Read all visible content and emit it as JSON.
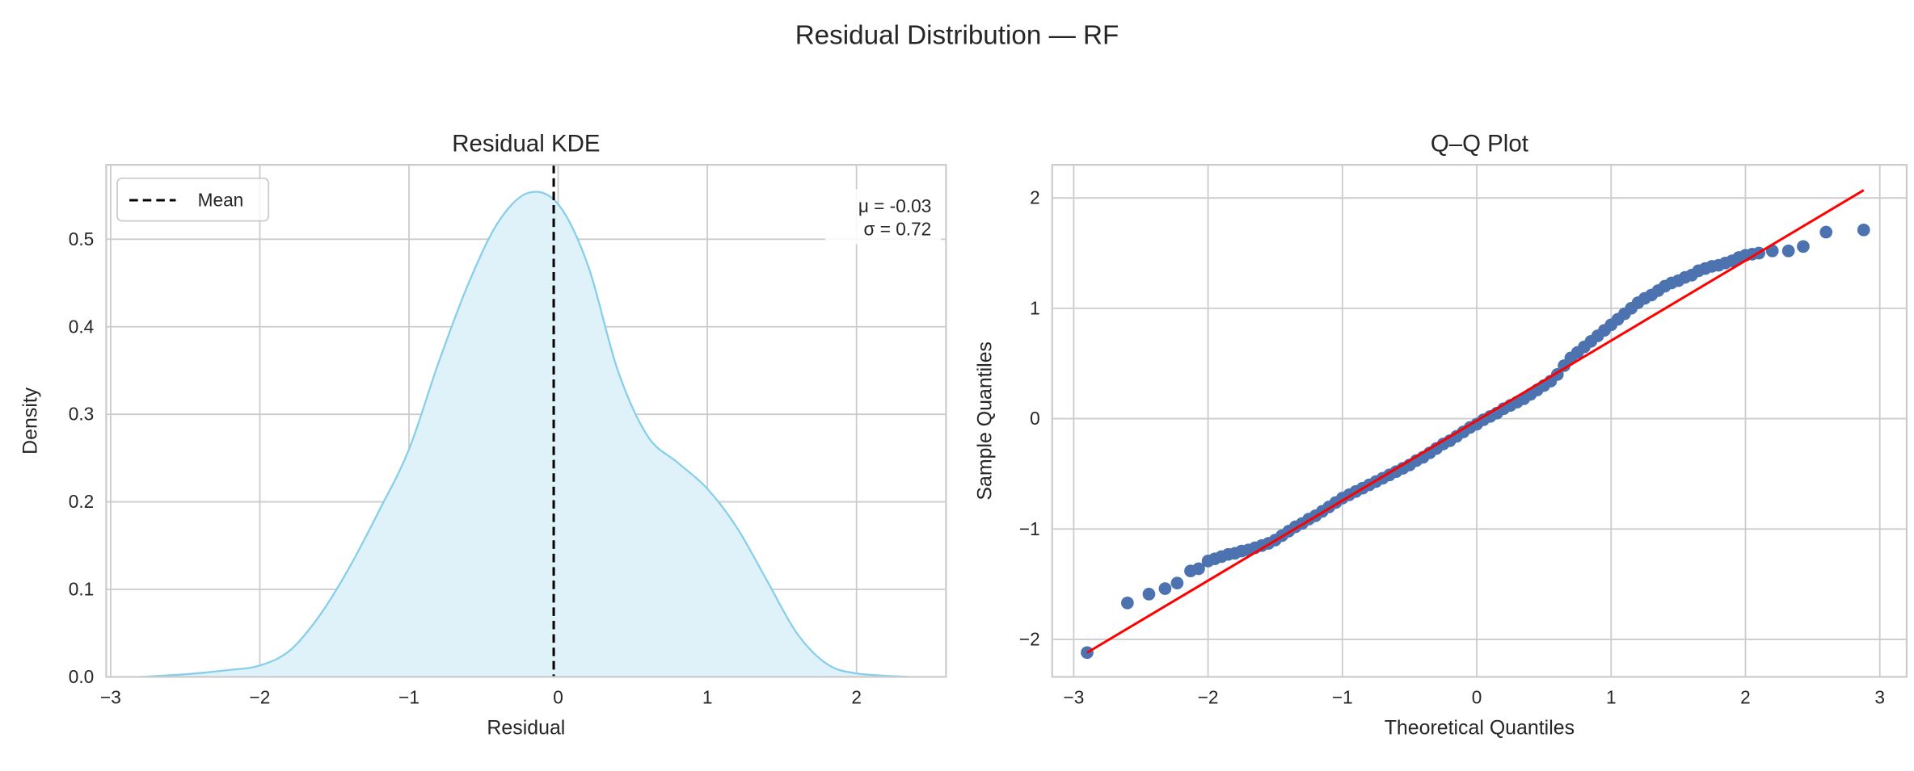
{
  "suptitle": "Residual Distribution — RF",
  "chart_data": [
    {
      "type": "area",
      "title": "Residual KDE",
      "xlabel": "Residual",
      "ylabel": "Density",
      "xlim": [
        -3.03,
        2.6
      ],
      "ylim": [
        0,
        0.585
      ],
      "xticks": [
        -3,
        -2,
        -1,
        0,
        1,
        2
      ],
      "xtick_labels": [
        "−3",
        "−2",
        "−1",
        "0",
        "1",
        "2"
      ],
      "yticks": [
        0,
        0.1,
        0.2,
        0.3,
        0.4,
        0.5
      ],
      "ytick_labels": [
        "0.0",
        "0.1",
        "0.2",
        "0.3",
        "0.4",
        "0.5"
      ],
      "grid": true,
      "line_color": "#87ceeb",
      "fill_color": "#dff1f9",
      "kde": {
        "x": [
          -2.8,
          -2.5,
          -2.2,
          -2.0,
          -1.8,
          -1.6,
          -1.4,
          -1.2,
          -1.0,
          -0.8,
          -0.6,
          -0.4,
          -0.2,
          0.0,
          0.2,
          0.4,
          0.6,
          0.8,
          1.0,
          1.2,
          1.4,
          1.6,
          1.8,
          2.0,
          2.35
        ],
        "y": [
          0.0,
          0.003,
          0.008,
          0.013,
          0.03,
          0.07,
          0.125,
          0.19,
          0.26,
          0.36,
          0.45,
          0.52,
          0.553,
          0.54,
          0.47,
          0.35,
          0.275,
          0.245,
          0.215,
          0.17,
          0.11,
          0.05,
          0.015,
          0.004,
          0.0
        ]
      },
      "mean_line": {
        "x": -0.03,
        "color": "#000000",
        "style": "dashed",
        "legend_label": "Mean"
      },
      "legend_position": "upper-left",
      "annotation": [
        "μ = -0.03",
        "σ = 0.72"
      ]
    },
    {
      "type": "scatter",
      "title": "Q–Q Plot",
      "xlabel": "Theoretical Quantiles",
      "ylabel": "Sample Quantiles",
      "xlim": [
        -3.16,
        3.2
      ],
      "ylim": [
        -2.34,
        2.3
      ],
      "xticks": [
        -3,
        -2,
        -1,
        0,
        1,
        2,
        3
      ],
      "xtick_labels": [
        "−3",
        "−2",
        "−1",
        "0",
        "1",
        "2",
        "3"
      ],
      "yticks": [
        -2,
        -1,
        0,
        1,
        2
      ],
      "ytick_labels": [
        "−2",
        "−1",
        "0",
        "1",
        "2"
      ],
      "grid": true,
      "point_color": "#4c72b0",
      "line_color": "#ff0000",
      "reference_line": {
        "x": [
          -2.9,
          2.88
        ],
        "y": [
          -2.12,
          2.07
        ]
      },
      "points": [
        [
          -2.9,
          -2.12
        ],
        [
          -2.6,
          -1.67
        ],
        [
          -2.44,
          -1.59
        ],
        [
          -2.32,
          -1.54
        ],
        [
          -2.23,
          -1.49
        ],
        [
          -2.13,
          -1.38
        ],
        [
          -2.07,
          -1.36
        ],
        [
          -2.0,
          -1.29
        ],
        [
          -1.95,
          -1.27
        ],
        [
          -1.9,
          -1.25
        ],
        [
          -1.85,
          -1.23
        ],
        [
          -1.8,
          -1.22
        ],
        [
          -1.75,
          -1.2
        ],
        [
          -1.7,
          -1.19
        ],
        [
          -1.65,
          -1.17
        ],
        [
          -1.6,
          -1.15
        ],
        [
          -1.55,
          -1.13
        ],
        [
          -1.5,
          -1.1
        ],
        [
          -1.45,
          -1.06
        ],
        [
          -1.4,
          -1.02
        ],
        [
          -1.35,
          -0.98
        ],
        [
          -1.3,
          -0.95
        ],
        [
          -1.25,
          -0.91
        ],
        [
          -1.2,
          -0.88
        ],
        [
          -1.15,
          -0.84
        ],
        [
          -1.1,
          -0.8
        ],
        [
          -1.05,
          -0.76
        ],
        [
          -1.0,
          -0.72
        ],
        [
          -0.95,
          -0.69
        ],
        [
          -0.9,
          -0.66
        ],
        [
          -0.85,
          -0.63
        ],
        [
          -0.8,
          -0.6
        ],
        [
          -0.75,
          -0.57
        ],
        [
          -0.7,
          -0.54
        ],
        [
          -0.65,
          -0.51
        ],
        [
          -0.6,
          -0.48
        ],
        [
          -0.55,
          -0.45
        ],
        [
          -0.5,
          -0.42
        ],
        [
          -0.45,
          -0.38
        ],
        [
          -0.4,
          -0.35
        ],
        [
          -0.35,
          -0.31
        ],
        [
          -0.3,
          -0.27
        ],
        [
          -0.25,
          -0.23
        ],
        [
          -0.2,
          -0.2
        ],
        [
          -0.15,
          -0.16
        ],
        [
          -0.1,
          -0.12
        ],
        [
          -0.05,
          -0.08
        ],
        [
          0.0,
          -0.05
        ],
        [
          0.05,
          -0.01
        ],
        [
          0.1,
          0.02
        ],
        [
          0.15,
          0.05
        ],
        [
          0.2,
          0.09
        ],
        [
          0.25,
          0.12
        ],
        [
          0.3,
          0.15
        ],
        [
          0.35,
          0.18
        ],
        [
          0.4,
          0.22
        ],
        [
          0.45,
          0.26
        ],
        [
          0.5,
          0.3
        ],
        [
          0.55,
          0.34
        ],
        [
          0.6,
          0.4
        ],
        [
          0.65,
          0.48
        ],
        [
          0.7,
          0.55
        ],
        [
          0.75,
          0.6
        ],
        [
          0.8,
          0.65
        ],
        [
          0.85,
          0.7
        ],
        [
          0.9,
          0.75
        ],
        [
          0.95,
          0.8
        ],
        [
          1.0,
          0.85
        ],
        [
          1.05,
          0.9
        ],
        [
          1.1,
          0.95
        ],
        [
          1.15,
          1.0
        ],
        [
          1.2,
          1.05
        ],
        [
          1.25,
          1.09
        ],
        [
          1.3,
          1.12
        ],
        [
          1.35,
          1.16
        ],
        [
          1.4,
          1.2
        ],
        [
          1.45,
          1.23
        ],
        [
          1.5,
          1.25
        ],
        [
          1.55,
          1.28
        ],
        [
          1.6,
          1.3
        ],
        [
          1.65,
          1.34
        ],
        [
          1.7,
          1.36
        ],
        [
          1.75,
          1.38
        ],
        [
          1.8,
          1.39
        ],
        [
          1.85,
          1.41
        ],
        [
          1.9,
          1.43
        ],
        [
          1.95,
          1.46
        ],
        [
          2.0,
          1.48
        ],
        [
          2.05,
          1.49
        ],
        [
          2.1,
          1.5
        ],
        [
          2.2,
          1.52
        ],
        [
          2.32,
          1.52
        ],
        [
          2.43,
          1.56
        ],
        [
          2.6,
          1.69
        ],
        [
          2.88,
          1.71
        ]
      ]
    }
  ]
}
